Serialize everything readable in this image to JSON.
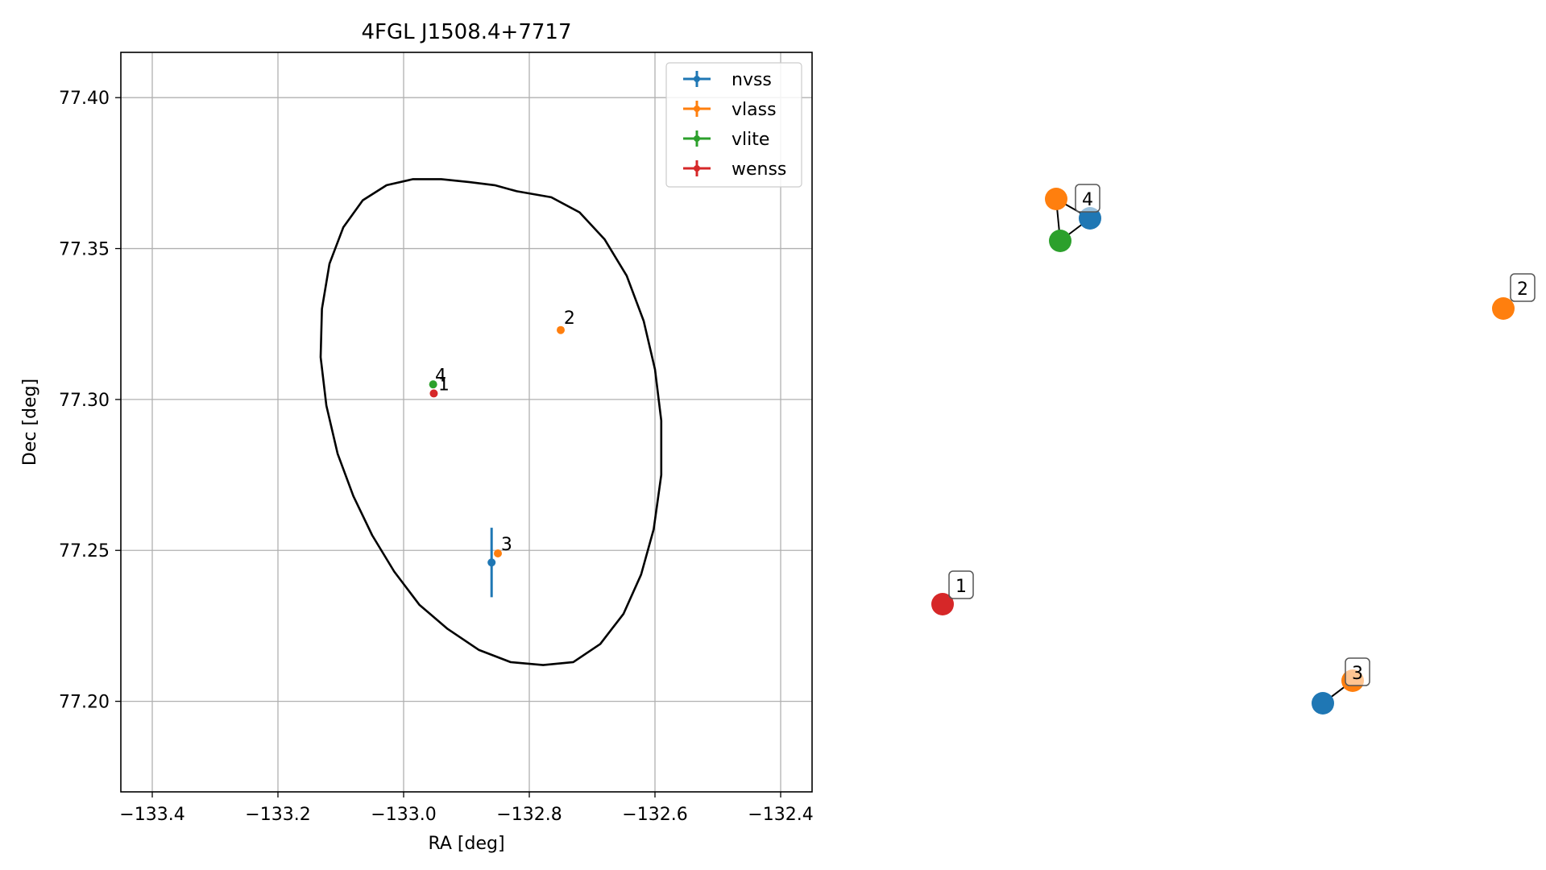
{
  "chart_data": [
    {
      "type": "scatter",
      "title": "4FGL J1508.4+7717",
      "xlabel": "RA [deg]",
      "ylabel": "Dec [deg]",
      "xlim": [
        -133.45,
        -132.35
      ],
      "ylim": [
        77.17,
        77.415
      ],
      "x_ticks": [
        -133.4,
        -133.2,
        -133.0,
        -132.8,
        -132.6,
        -132.4
      ],
      "x_tick_labels": [
        "−133.4",
        "−133.2",
        "−133.0",
        "−132.8",
        "−132.6",
        "−132.4"
      ],
      "y_ticks": [
        77.2,
        77.25,
        77.3,
        77.35,
        77.4
      ],
      "y_tick_labels": [
        "77.20",
        "77.25",
        "77.30",
        "77.35",
        "77.40"
      ],
      "grid": true,
      "legend_position": "top-right",
      "colors": {
        "nvss": "#1f77b4",
        "vlass": "#ff7f0e",
        "vlite": "#2ca02c",
        "wenss": "#d62728",
        "ellipse": "#000000",
        "grid": "#b0b0b0"
      },
      "series": [
        {
          "name": "nvss",
          "points": [
            {
              "x": -132.86,
              "y": 77.246,
              "yerr": 0.0115
            }
          ]
        },
        {
          "name": "vlass",
          "points": [
            {
              "x": -132.75,
              "y": 77.323
            },
            {
              "x": -132.85,
              "y": 77.249
            }
          ]
        },
        {
          "name": "vlite",
          "points": [
            {
              "x": -132.953,
              "y": 77.305
            }
          ]
        },
        {
          "name": "wenss",
          "points": [
            {
              "x": -132.952,
              "y": 77.302
            }
          ]
        }
      ],
      "point_labels": [
        {
          "text": "1",
          "x": -132.945,
          "y": 77.303
        },
        {
          "text": "2",
          "x": -132.745,
          "y": 77.325
        },
        {
          "text": "3",
          "x": -132.845,
          "y": 77.25
        },
        {
          "text": "4",
          "x": -132.95,
          "y": 77.306
        }
      ],
      "ellipse": {
        "center": [
          -132.895,
          77.293
        ],
        "vertices": [
          [
            -132.82,
            77.369
          ],
          [
            -132.765,
            77.367
          ],
          [
            -132.72,
            77.362
          ],
          [
            -132.68,
            77.353
          ],
          [
            -132.645,
            77.341
          ],
          [
            -132.618,
            77.326
          ],
          [
            -132.6,
            77.31
          ],
          [
            -132.59,
            77.293
          ],
          [
            -132.59,
            77.275
          ],
          [
            -132.602,
            77.257
          ],
          [
            -132.622,
            77.242
          ],
          [
            -132.65,
            77.229
          ],
          [
            -132.687,
            77.219
          ],
          [
            -132.73,
            77.213
          ],
          [
            -132.778,
            77.212
          ],
          [
            -132.83,
            77.213
          ],
          [
            -132.88,
            77.217
          ],
          [
            -132.93,
            77.224
          ],
          [
            -132.975,
            77.232
          ],
          [
            -133.015,
            77.243
          ],
          [
            -133.05,
            77.255
          ],
          [
            -133.08,
            77.268
          ],
          [
            -133.105,
            77.282
          ],
          [
            -133.123,
            77.298
          ],
          [
            -133.132,
            77.314
          ],
          [
            -133.13,
            77.33
          ],
          [
            -133.118,
            77.345
          ],
          [
            -133.096,
            77.357
          ],
          [
            -133.065,
            77.366
          ],
          [
            -133.027,
            77.371
          ],
          [
            -132.985,
            77.373
          ],
          [
            -132.94,
            77.373
          ],
          [
            -132.895,
            77.372
          ],
          [
            -132.855,
            77.371
          ]
        ]
      }
    },
    {
      "type": "graph",
      "nodes": [
        {
          "label": "1",
          "members": [
            "wenss"
          ]
        },
        {
          "label": "2",
          "members": [
            "vlass"
          ]
        },
        {
          "label": "3",
          "members": [
            "nvss",
            "vlass"
          ]
        },
        {
          "label": "4",
          "members": [
            "nvss",
            "vlass",
            "vlite"
          ]
        }
      ]
    }
  ]
}
